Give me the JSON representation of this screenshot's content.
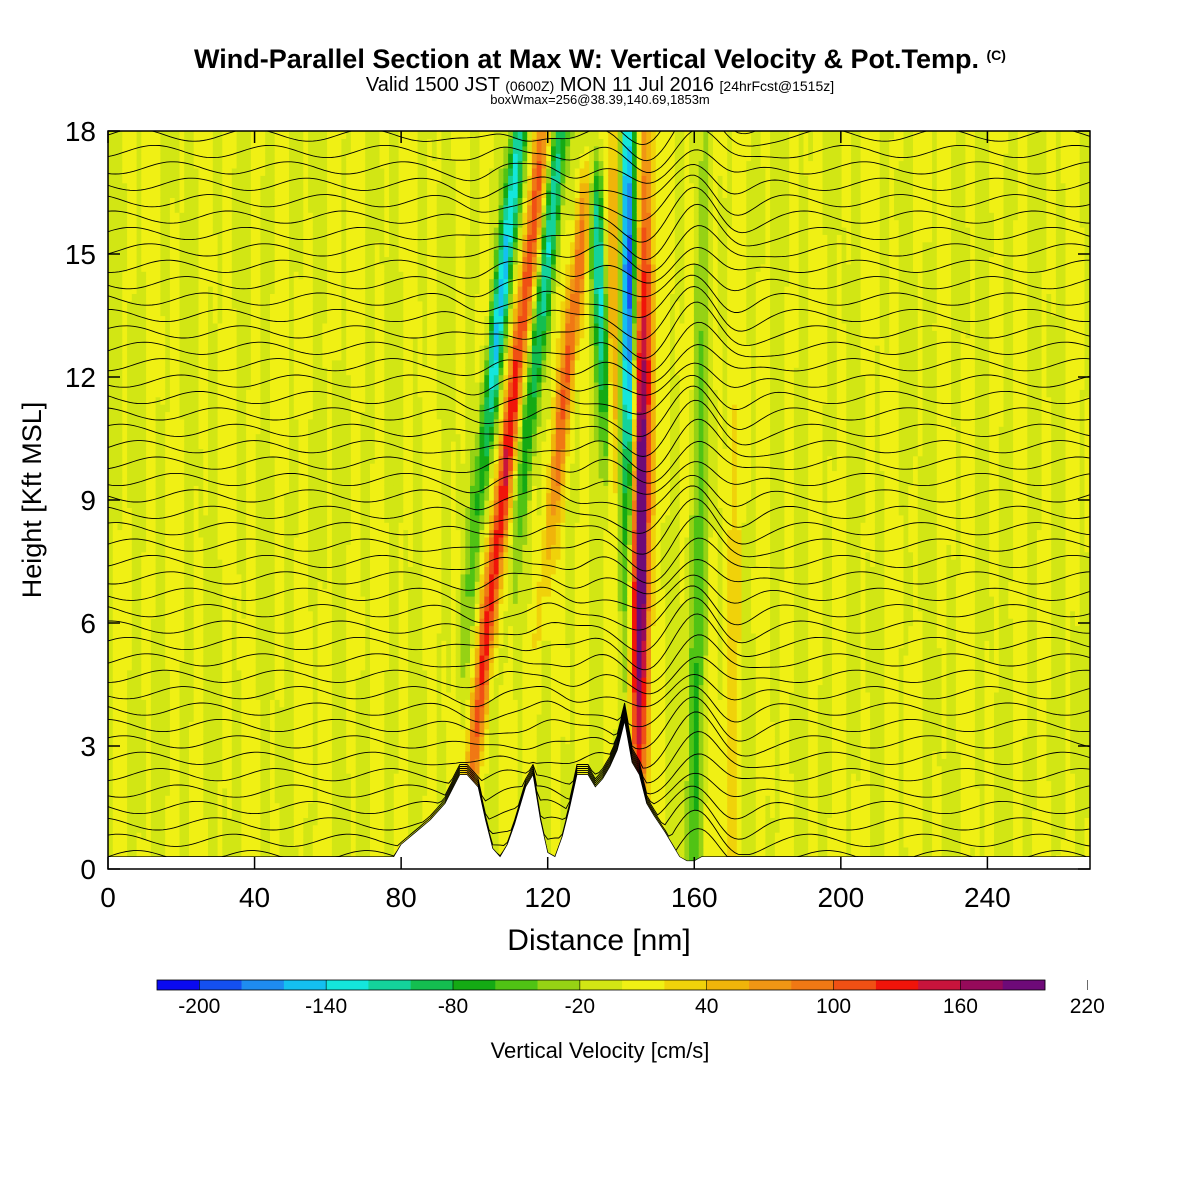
{
  "title": {
    "main": "Wind-Parallel Section at Max W: Vertical Velocity & Pot.Temp.",
    "copyright": "(C)",
    "valid_prefix": "Valid 1500 JST",
    "valid_utc": "(0600Z)",
    "valid_date": "MON 11 Jul 2016",
    "forecast": "[24hrFcst@1515z]",
    "boxline": "boxWmax=256@38.39,140.69,1853m"
  },
  "chart_data": {
    "type": "heatmap",
    "xlabel": "Distance [nm]",
    "ylabel": "Height [Kft MSL]",
    "xlim": [
      0,
      268
    ],
    "ylim": [
      0,
      18
    ],
    "x_ticks": [
      0,
      40,
      80,
      120,
      160,
      200,
      240
    ],
    "y_ticks": [
      0,
      3,
      6,
      9,
      12,
      15,
      18
    ],
    "grid": false,
    "colorbar": {
      "label": "Vertical Velocity [cm/s]",
      "placement": "bottom",
      "min": -220,
      "step": 20,
      "labels": [
        -200,
        -140,
        -80,
        -20,
        40,
        100,
        160,
        220
      ],
      "colors": [
        "#0a0af0",
        "#1450f0",
        "#1e8cf0",
        "#14c0f0",
        "#14e6dc",
        "#14d29b",
        "#14be50",
        "#14aa14",
        "#50c314",
        "#96d214",
        "#d2e614",
        "#f0f014",
        "#f0d20a",
        "#f0b40a",
        "#f09614",
        "#f07814",
        "#f05014",
        "#f0140a",
        "#c8143c",
        "#960a5a",
        "#6e0a78"
      ]
    },
    "terrain_profile": {
      "x": [
        0,
        78,
        80,
        84,
        88,
        92,
        96,
        98,
        101,
        103,
        105,
        107,
        109,
        111,
        114,
        116,
        118,
        120,
        122,
        124,
        126,
        128,
        131,
        133,
        135,
        137,
        139,
        141,
        143,
        145,
        147,
        149,
        152,
        154,
        156,
        158,
        160,
        162,
        268
      ],
      "height_kft": [
        0.3,
        0.3,
        0.6,
        0.9,
        1.2,
        1.6,
        2.3,
        2.3,
        2.0,
        1.2,
        0.5,
        0.3,
        0.6,
        1.1,
        2.0,
        2.3,
        1.2,
        0.4,
        0.3,
        0.8,
        1.5,
        2.3,
        2.3,
        2.0,
        2.2,
        2.5,
        2.9,
        3.6,
        2.6,
        2.3,
        1.6,
        1.3,
        0.9,
        0.6,
        0.3,
        0.2,
        0.2,
        0.3,
        0.3
      ]
    },
    "vertical_velocity_features": [
      {
        "x": 103,
        "z_kft": 5.5,
        "w_cm_s": 110
      },
      {
        "x": 108,
        "z_kft": 14.5,
        "w_cm_s": -150
      },
      {
        "x": 114,
        "z_kft": 14.0,
        "w_cm_s": 110
      },
      {
        "x": 120,
        "z_kft": 15.0,
        "w_cm_s": -120
      },
      {
        "x": 127,
        "z_kft": 13.5,
        "w_cm_s": 110
      },
      {
        "x": 134,
        "z_kft": 14.5,
        "w_cm_s": -120
      },
      {
        "x": 138,
        "z_kft": 12.0,
        "w_cm_s": 80
      },
      {
        "x": 142,
        "z_kft": 14.0,
        "w_cm_s": -200
      },
      {
        "x": 145,
        "z_kft": 7.2,
        "w_cm_s": 200
      },
      {
        "x": 147,
        "z_kft": 13.0,
        "w_cm_s": 110
      },
      {
        "x": 160,
        "z_kft": 2.5,
        "w_cm_s": -50
      },
      {
        "x": 162,
        "z_kft": 9.8,
        "w_cm_s": -40
      },
      {
        "x": 170,
        "z_kft": 5.5,
        "w_cm_s": 40
      }
    ]
  }
}
